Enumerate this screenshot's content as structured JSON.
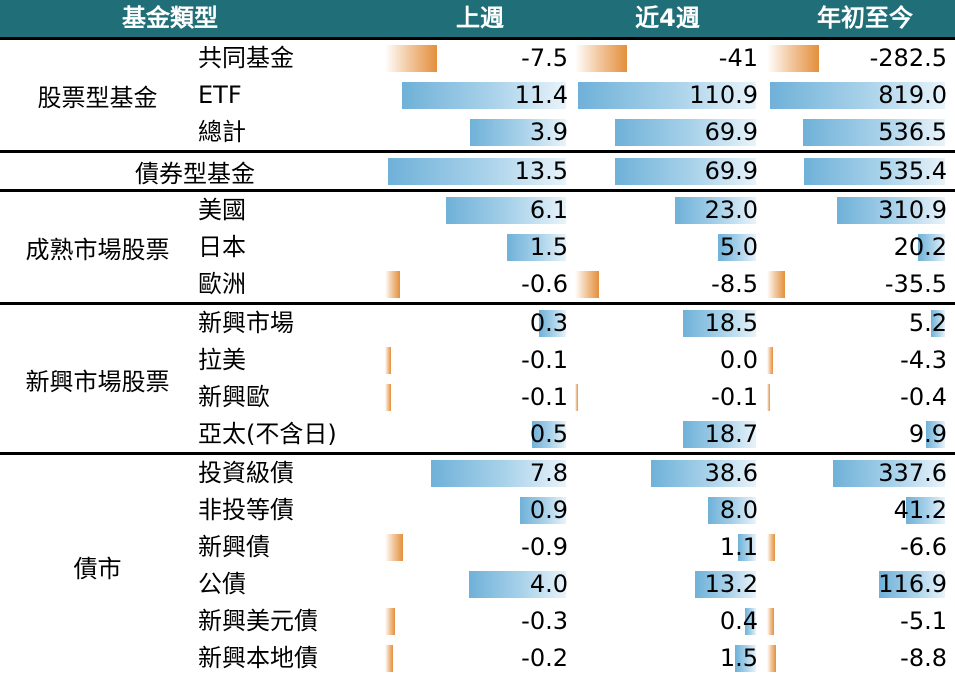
{
  "header": {
    "group": "基金類型",
    "week": "上週",
    "four_week": "近4週",
    "ytd": "年初至今"
  },
  "colors": {
    "header_bg": "#1f6e78",
    "positive": "#6fb1d8",
    "negative": "#e48f3c"
  },
  "groups": [
    {
      "name": "股票型基金"
    },
    {
      "name": "債券型基金"
    },
    {
      "name": "成熟市場股票"
    },
    {
      "name": "新興市場股票"
    },
    {
      "name": "債市"
    }
  ],
  "rows": [
    {
      "label": "共同基金",
      "week": "-7.5",
      "four_week": "-41",
      "ytd": "-282.5"
    },
    {
      "label": "ETF",
      "week": "11.4",
      "four_week": "110.9",
      "ytd": "819.0"
    },
    {
      "label": "總計",
      "week": "3.9",
      "four_week": "69.9",
      "ytd": "536.5"
    },
    {
      "label": "",
      "week": "13.5",
      "four_week": "69.9",
      "ytd": "535.4"
    },
    {
      "label": "美國",
      "week": "6.1",
      "four_week": "23.0",
      "ytd": "310.9"
    },
    {
      "label": "日本",
      "week": "1.5",
      "four_week": "5.0",
      "ytd": "20.2"
    },
    {
      "label": "歐洲",
      "week": "-0.6",
      "four_week": "-8.5",
      "ytd": "-35.5"
    },
    {
      "label": "新興市場",
      "week": "0.3",
      "four_week": "18.5",
      "ytd": "5.2"
    },
    {
      "label": "拉美",
      "week": "-0.1",
      "four_week": "0.0",
      "ytd": "-4.3"
    },
    {
      "label": "新興歐",
      "week": "-0.1",
      "four_week": "-0.1",
      "ytd": "-0.4"
    },
    {
      "label": "亞太(不含日)",
      "week": "0.5",
      "four_week": "18.7",
      "ytd": "9.9"
    },
    {
      "label": "投資級債",
      "week": "7.8",
      "four_week": "38.6",
      "ytd": "337.6"
    },
    {
      "label": "非投等債",
      "week": "0.9",
      "four_week": "8.0",
      "ytd": "41.2"
    },
    {
      "label": "新興債",
      "week": "-0.9",
      "four_week": "1.1",
      "ytd": "-6.6"
    },
    {
      "label": "公債",
      "week": "4.0",
      "four_week": "13.2",
      "ytd": "116.9"
    },
    {
      "label": "新興美元債",
      "week": "-0.3",
      "four_week": "0.4",
      "ytd": "-5.1"
    },
    {
      "label": "新興本地債",
      "week": "-0.2",
      "four_week": "1.5",
      "ytd": "-8.8"
    }
  ]
}
